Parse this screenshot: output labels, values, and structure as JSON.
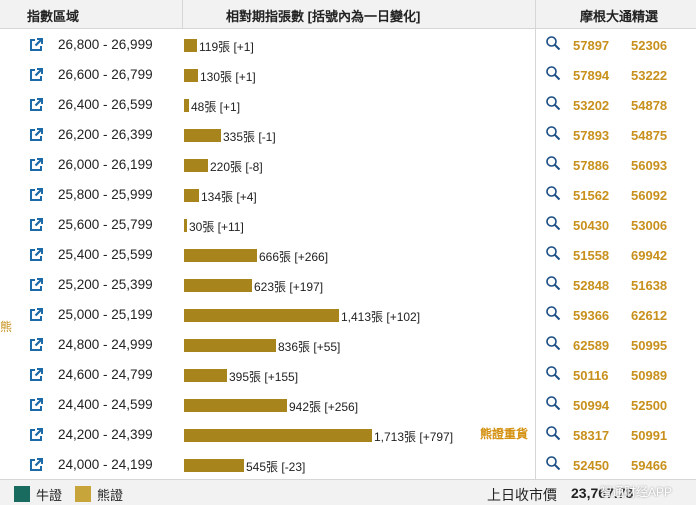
{
  "header": {
    "col_range": "指數區域",
    "col_bars": "相對期指張數 [括號內為一日變化]",
    "col_picks": "摩根大通精選"
  },
  "side_label": "熊",
  "note": "熊證重貨",
  "legend": {
    "bull": "牛證",
    "bear": "熊證",
    "bull_color": "#1a6b5f",
    "bear_color": "#c8a53a"
  },
  "footer": {
    "close_label": "上日收市價",
    "close_value": "23,767.78"
  },
  "watermark": "智通财经APP",
  "icons": {
    "link": "external-link-icon",
    "search": "magnifier-icon"
  },
  "colors": {
    "bar": "#a8841d",
    "code": "#c8901c"
  },
  "chart_data": {
    "type": "bar",
    "orientation": "horizontal",
    "categories": [
      "26,800 - 26,999",
      "26,600 - 26,799",
      "26,400 - 26,599",
      "26,200 - 26,399",
      "26,000 - 26,199",
      "25,800 - 25,999",
      "25,600 - 25,799",
      "25,400 - 25,599",
      "25,200 - 25,399",
      "25,000 - 25,199",
      "24,800 - 24,999",
      "24,600 - 24,799",
      "24,400 - 24,599",
      "24,200 - 24,399",
      "24,000 - 24,199"
    ],
    "values": [
      119,
      130,
      48,
      335,
      220,
      134,
      30,
      666,
      623,
      1413,
      836,
      395,
      942,
      1713,
      545
    ],
    "labels": [
      "119張 [+1]",
      "130張 [+1]",
      "48張 [+1]",
      "335張 [-1]",
      "220張 [-8]",
      "134張 [+4]",
      "30張 [+11]",
      "666張 [+266]",
      "623張 [+197]",
      "1,413張 [+102]",
      "836張 [+55]",
      "395張 [+155]",
      "942張 [+256]",
      "1,713張 [+797]",
      "545張 [-23]"
    ],
    "picks": [
      [
        "57897",
        "52306"
      ],
      [
        "57894",
        "53222"
      ],
      [
        "53202",
        "54878"
      ],
      [
        "57893",
        "54875"
      ],
      [
        "57886",
        "56093"
      ],
      [
        "51562",
        "56092"
      ],
      [
        "50430",
        "53006"
      ],
      [
        "51558",
        "69942"
      ],
      [
        "52848",
        "51638"
      ],
      [
        "59366",
        "62612"
      ],
      [
        "62589",
        "50995"
      ],
      [
        "50116",
        "50989"
      ],
      [
        "50994",
        "52500"
      ],
      [
        "58317",
        "50991"
      ],
      [
        "52450",
        "59466"
      ]
    ],
    "series": [
      {
        "name": "熊證",
        "values": [
          119,
          130,
          48,
          335,
          220,
          134,
          30,
          666,
          623,
          1413,
          836,
          395,
          942,
          1713,
          545
        ]
      }
    ]
  }
}
